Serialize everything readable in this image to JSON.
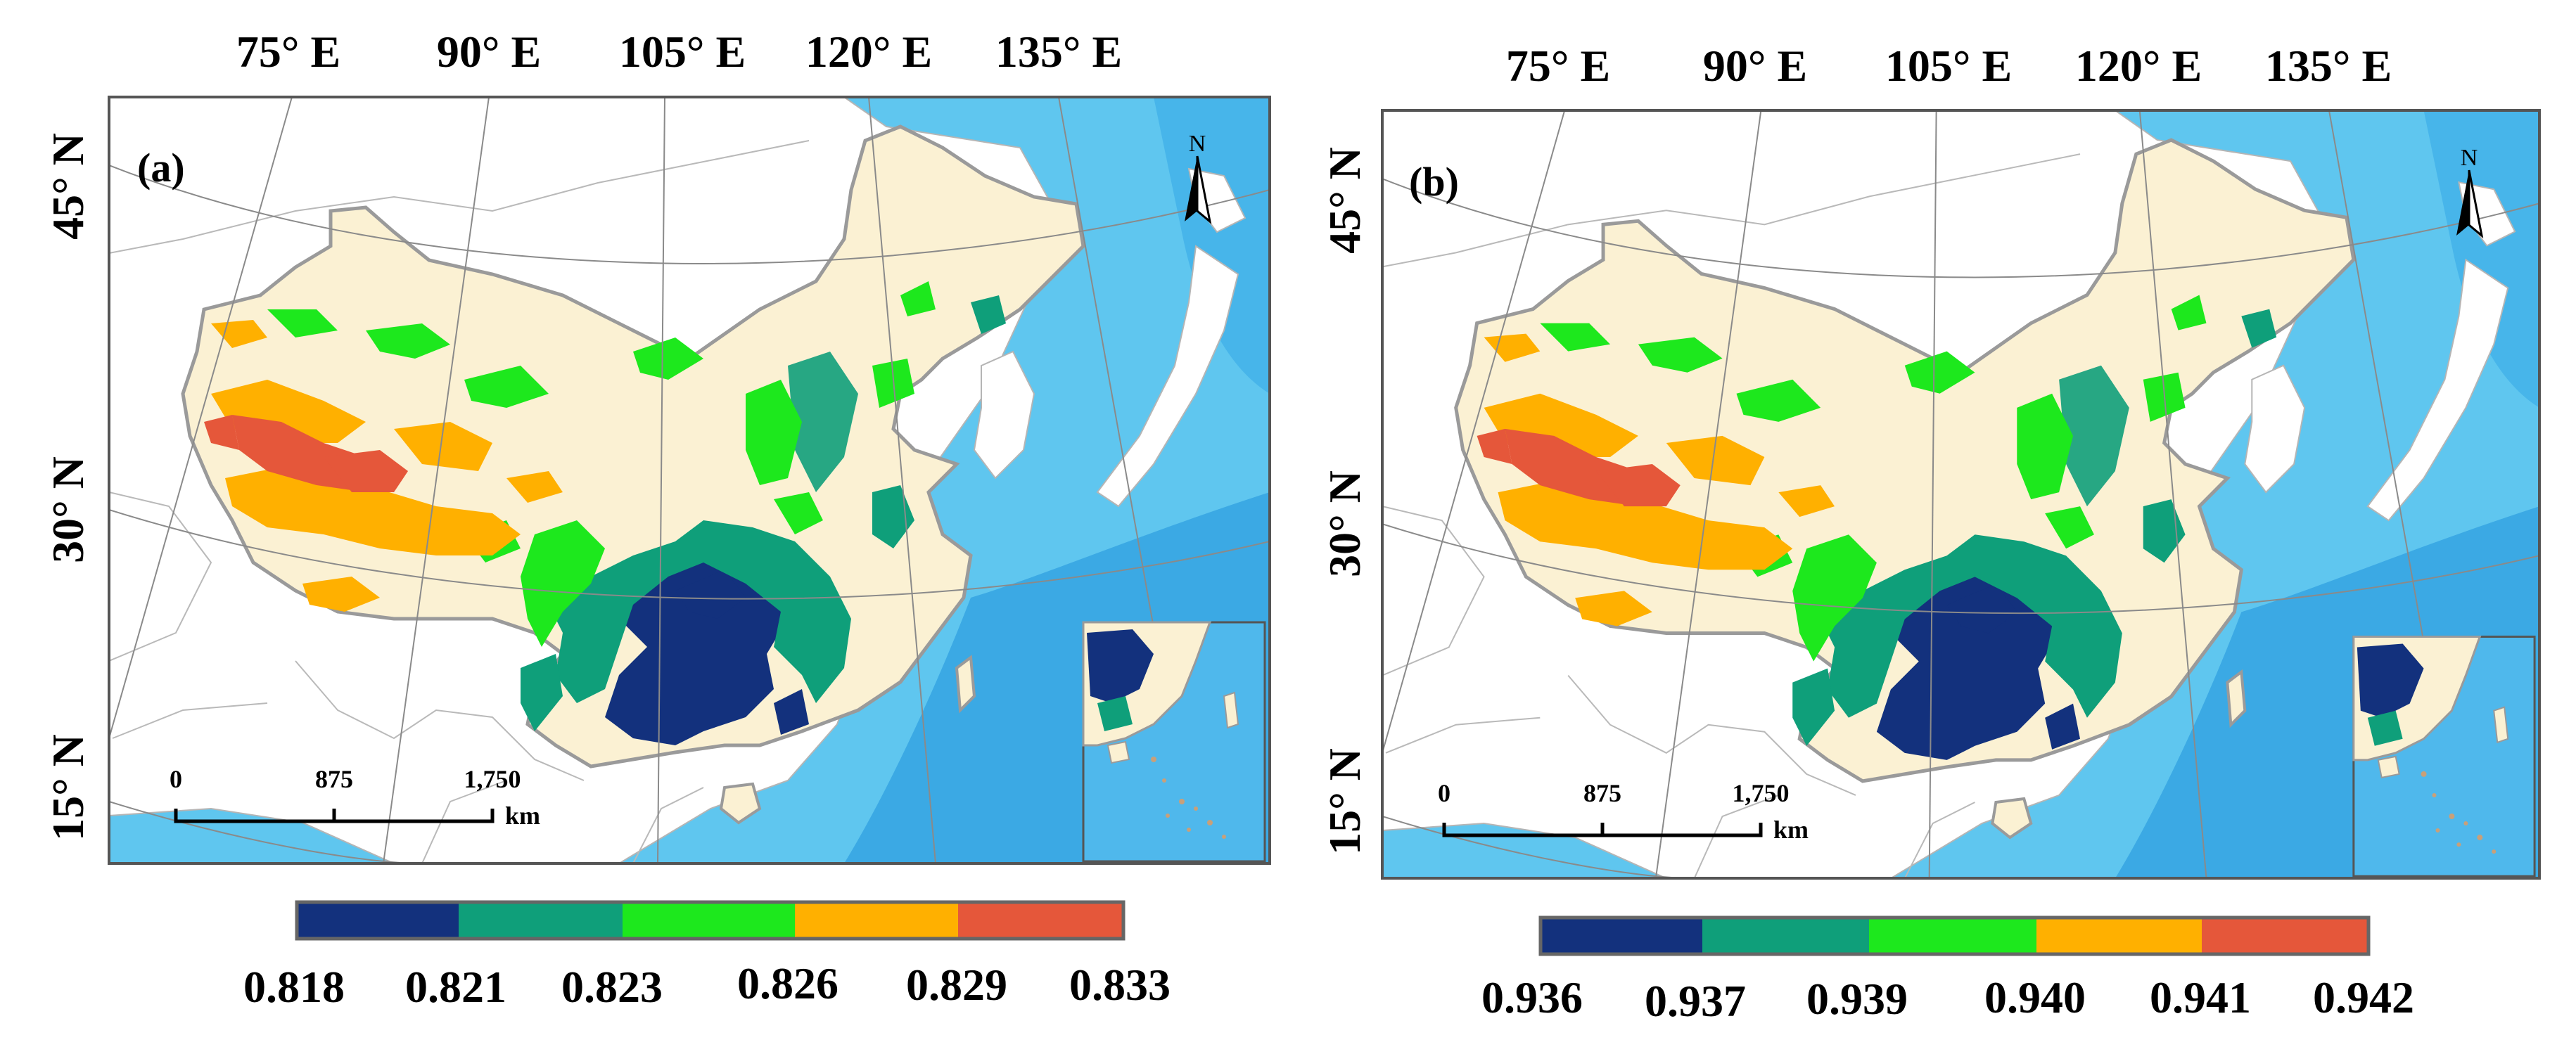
{
  "colors": {
    "ocean": "#5fc6ef",
    "ocean_deep": "#2f9fe0",
    "land_china": "#fbf1d3",
    "land_other": "#ffffff",
    "border": "#9a9a9a",
    "grid": "#888888",
    "frame": "#555555",
    "class_colors": [
      "#13317d",
      "#0f9f7a",
      "#1de81d",
      "#ffb000",
      "#e5573a"
    ]
  },
  "panels": [
    {
      "label": "(a)",
      "lon_labels": [
        "75° E",
        "90° E",
        "105° E",
        "120° E",
        "135° E"
      ],
      "lat_labels": [
        "45° N",
        "30° N",
        "15° N"
      ],
      "north_label": "N",
      "scale_bar": {
        "ticks": [
          "0",
          "875",
          "1,750"
        ],
        "unit": "km"
      },
      "legend": {
        "values": [
          "0.818",
          "0.821",
          "0.823",
          "0.826",
          "0.829",
          "0.833"
        ]
      }
    },
    {
      "label": "(b)",
      "lon_labels": [
        "75° E",
        "90° E",
        "105° E",
        "120° E",
        "135° E"
      ],
      "lat_labels": [
        "45° N",
        "30° N",
        "15° N"
      ],
      "north_label": "N",
      "scale_bar": {
        "ticks": [
          "0",
          "875",
          "1,750"
        ],
        "unit": "km"
      },
      "legend": {
        "values": [
          "0.936",
          "0.937",
          "0.939",
          "0.940",
          "0.941",
          "0.942"
        ]
      }
    }
  ]
}
